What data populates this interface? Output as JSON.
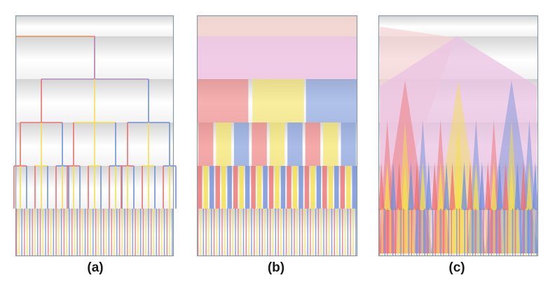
{
  "figure": {
    "panels": [
      {
        "id": "a",
        "caption": "(a)",
        "style": "tree-lines"
      },
      {
        "id": "b",
        "caption": "(b)",
        "style": "nested-blocks"
      },
      {
        "id": "c",
        "caption": "(c)",
        "style": "triangles"
      }
    ],
    "colors": {
      "red": "#ee6f6f",
      "yellow": "#f4e04c",
      "blue": "#6f8fd8",
      "purple": "#b58bc5",
      "orange": "#ef8a52",
      "frame": "#8a9aa2",
      "band_light": "#ffffff",
      "band_dark": "#d4d4d4"
    },
    "levels": 6,
    "branching": [
      1,
      2,
      3,
      3,
      2
    ]
  }
}
